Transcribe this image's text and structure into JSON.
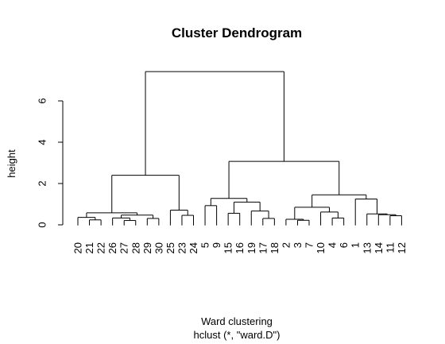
{
  "chart_data": {
    "type": "dendrogram",
    "title": "Cluster Dendrogram",
    "xlabel": "Ward clustering",
    "sub": "hclust (*, \"ward.D\")",
    "ylabel": "height",
    "yticks": [
      0,
      2,
      4,
      6
    ],
    "ylim": [
      0,
      7.6
    ],
    "leaf_order": [
      "20",
      "21",
      "22",
      "26",
      "27",
      "28",
      "29",
      "30",
      "25",
      "23",
      "24",
      "5",
      "9",
      "15",
      "16",
      "19",
      "17",
      "18",
      "2",
      "3",
      "7",
      "10",
      "4",
      "6",
      "1",
      "13",
      "14",
      "11",
      "12"
    ],
    "merges": [
      {
        "a": "21",
        "b": "22",
        "h": 0.24
      },
      {
        "a": "20",
        "b": [
          "21",
          "22"
        ],
        "h": 0.36
      },
      {
        "a": "27",
        "b": "28",
        "h": 0.21
      },
      {
        "a": "26",
        "b": [
          "27",
          "28"
        ],
        "h": 0.33
      },
      {
        "a": "29",
        "b": "30",
        "h": 0.31
      },
      {
        "a": [
          "26",
          "27",
          "28"
        ],
        "b": [
          "29",
          "30"
        ],
        "h": 0.47
      },
      {
        "a": [
          "20",
          "21",
          "22"
        ],
        "b": [
          "26",
          "27",
          "28",
          "29",
          "30"
        ],
        "h": 0.58
      },
      {
        "a": "23",
        "b": "24",
        "h": 0.46
      },
      {
        "a": "25",
        "b": [
          "23",
          "24"
        ],
        "h": 0.71
      },
      {
        "a": [
          "20",
          "21",
          "22",
          "26",
          "27",
          "28",
          "29",
          "30"
        ],
        "b": [
          "25",
          "23",
          "24"
        ],
        "h": 2.4
      },
      {
        "a": "5",
        "b": "9",
        "h": 0.93
      },
      {
        "a": "15",
        "b": "16",
        "h": 0.56
      },
      {
        "a": "17",
        "b": "18",
        "h": 0.31
      },
      {
        "a": "19",
        "b": [
          "17",
          "18"
        ],
        "h": 0.67
      },
      {
        "a": [
          "15",
          "16"
        ],
        "b": [
          "19",
          "17",
          "18"
        ],
        "h": 1.1
      },
      {
        "a": [
          "5",
          "9"
        ],
        "b": [
          "15",
          "16",
          "19",
          "17",
          "18"
        ],
        "h": 1.28
      },
      {
        "a": "3",
        "b": "7",
        "h": 0.22
      },
      {
        "a": "2",
        "b": [
          "3",
          "7"
        ],
        "h": 0.27
      },
      {
        "a": "4",
        "b": "6",
        "h": 0.33
      },
      {
        "a": "10",
        "b": [
          "4",
          "6"
        ],
        "h": 0.62
      },
      {
        "a": [
          "2",
          "3",
          "7"
        ],
        "b": [
          "10",
          "4",
          "6"
        ],
        "h": 0.85
      },
      {
        "a": "11",
        "b": "12",
        "h": 0.44
      },
      {
        "a": "14",
        "b": [
          "11",
          "12"
        ],
        "h": 0.49
      },
      {
        "a": "13",
        "b": [
          "14",
          "11",
          "12"
        ],
        "h": 0.53
      },
      {
        "a": "1",
        "b": [
          "13",
          "14",
          "11",
          "12"
        ],
        "h": 1.25
      },
      {
        "a": [
          "2",
          "3",
          "7",
          "10",
          "4",
          "6"
        ],
        "b": [
          "1",
          "13",
          "14",
          "11",
          "12"
        ],
        "h": 1.45
      },
      {
        "a": [
          "5",
          "9",
          "15",
          "16",
          "19",
          "17",
          "18"
        ],
        "b": [
          "2",
          "3",
          "7",
          "10",
          "4",
          "6",
          "1",
          "13",
          "14",
          "11",
          "12"
        ],
        "h": 3.07
      },
      {
        "a": [
          "20",
          "21",
          "22",
          "26",
          "27",
          "28",
          "29",
          "30",
          "25",
          "23",
          "24"
        ],
        "b": [
          "5",
          "9",
          "15",
          "16",
          "19",
          "17",
          "18",
          "2",
          "3",
          "7",
          "10",
          "4",
          "6",
          "1",
          "13",
          "14",
          "11",
          "12"
        ],
        "h": 7.42
      }
    ],
    "grid": false,
    "legend": "none"
  }
}
